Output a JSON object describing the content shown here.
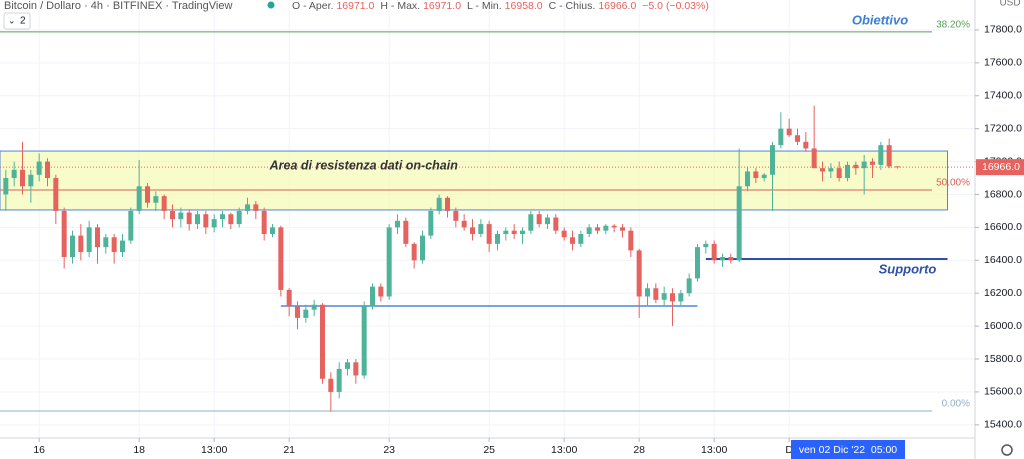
{
  "chart_data": {
    "type": "candlestick",
    "header": {
      "title": "Bitcoin / Dollaro · 4h · BITFINEX · TradingView",
      "ohlc": [
        {
          "label": "O - Aper.",
          "value": "16971.0"
        },
        {
          "label": "H - Max.",
          "value": "16971.0"
        },
        {
          "label": "L - Min.",
          "value": "16958.0"
        },
        {
          "label": "C - Chius.",
          "value": "16966.0"
        }
      ],
      "change": "−5.0 (−0.03%)",
      "indicators": "2"
    },
    "up_color": "#4fb39a",
    "down_color": "#e5625e",
    "ylim": [
      15320,
      17982
    ],
    "yticks": [
      {
        "value": 15400,
        "label": "15400.0"
      },
      {
        "value": 15600,
        "label": "15600.0"
      },
      {
        "value": 15800,
        "label": "15800.0"
      },
      {
        "value": 16000,
        "label": "16000.0"
      },
      {
        "value": 16200,
        "label": "16200.0"
      },
      {
        "value": 16400,
        "label": "16400.0"
      },
      {
        "value": 16600,
        "label": "16600.0"
      },
      {
        "value": 16800,
        "label": "16800.0"
      },
      {
        "value": 17000,
        "label": "17000.0"
      },
      {
        "value": 17200,
        "label": "17200.0"
      },
      {
        "value": 17400,
        "label": "17400.0"
      },
      {
        "value": 17600,
        "label": "17600.0"
      },
      {
        "value": 17800,
        "label": "17800.0"
      }
    ],
    "xlim": [
      -0.7,
      116.3
    ],
    "xticks": [
      {
        "value": 4,
        "label": "16"
      },
      {
        "value": 16,
        "label": "18"
      },
      {
        "value": 25,
        "label": "13:00"
      },
      {
        "value": 34,
        "label": "21"
      },
      {
        "value": 46,
        "label": "23"
      },
      {
        "value": 58,
        "label": "25"
      },
      {
        "value": 67,
        "label": "13:00"
      },
      {
        "value": 76,
        "label": "28"
      },
      {
        "value": 85,
        "label": "13:00"
      },
      {
        "value": 94,
        "label": "D"
      }
    ],
    "grid": true,
    "candles": [
      [
        16800,
        16950,
        16700,
        16900
      ],
      [
        16900,
        17000,
        16850,
        16950
      ],
      [
        16950,
        17120,
        16800,
        16850
      ],
      [
        16850,
        16950,
        16750,
        16920
      ],
      [
        16920,
        17050,
        16880,
        17000
      ],
      [
        17000,
        17020,
        16850,
        16900
      ],
      [
        16900,
        16920,
        16620,
        16700
      ],
      [
        16700,
        16720,
        16350,
        16420
      ],
      [
        16420,
        16580,
        16380,
        16550
      ],
      [
        16550,
        16620,
        16400,
        16450
      ],
      [
        16450,
        16640,
        16420,
        16600
      ],
      [
        16600,
        16620,
        16380,
        16480
      ],
      [
        16480,
        16560,
        16440,
        16540
      ],
      [
        16540,
        16560,
        16380,
        16450
      ],
      [
        16450,
        16560,
        16420,
        16520
      ],
      [
        16520,
        16720,
        16500,
        16700
      ],
      [
        16700,
        17010,
        16680,
        16850
      ],
      [
        16850,
        16870,
        16720,
        16750
      ],
      [
        16750,
        16820,
        16700,
        16790
      ],
      [
        16790,
        16800,
        16650,
        16700
      ],
      [
        16700,
        16740,
        16600,
        16650
      ],
      [
        16650,
        16720,
        16600,
        16690
      ],
      [
        16690,
        16710,
        16580,
        16620
      ],
      [
        16620,
        16700,
        16590,
        16680
      ],
      [
        16680,
        16700,
        16560,
        16600
      ],
      [
        16600,
        16680,
        16570,
        16650
      ],
      [
        16650,
        16700,
        16600,
        16680
      ],
      [
        16680,
        16690,
        16590,
        16620
      ],
      [
        16620,
        16720,
        16600,
        16700
      ],
      [
        16700,
        16780,
        16680,
        16740
      ],
      [
        16740,
        16760,
        16650,
        16700
      ],
      [
        16700,
        16720,
        16520,
        16560
      ],
      [
        16560,
        16620,
        16540,
        16600
      ],
      [
        16600,
        16610,
        16180,
        16220
      ],
      [
        16220,
        16230,
        16060,
        16120
      ],
      [
        16120,
        16150,
        15980,
        16050
      ],
      [
        16050,
        16130,
        16020,
        16100
      ],
      [
        16100,
        16160,
        16060,
        16130
      ],
      [
        16130,
        16140,
        15650,
        15680
      ],
      [
        15680,
        15720,
        15480,
        15600
      ],
      [
        15600,
        15780,
        15560,
        15740
      ],
      [
        15740,
        15800,
        15700,
        15780
      ],
      [
        15780,
        15800,
        15650,
        15700
      ],
      [
        15700,
        16150,
        15680,
        16120
      ],
      [
        16120,
        16260,
        16100,
        16240
      ],
      [
        16240,
        16260,
        16150,
        16180
      ],
      [
        16180,
        16620,
        16160,
        16600
      ],
      [
        16600,
        16680,
        16560,
        16640
      ],
      [
        16640,
        16660,
        16480,
        16500
      ],
      [
        16500,
        16510,
        16350,
        16400
      ],
      [
        16400,
        16580,
        16380,
        16550
      ],
      [
        16550,
        16720,
        16530,
        16700
      ],
      [
        16700,
        16800,
        16680,
        16780
      ],
      [
        16780,
        16790,
        16660,
        16700
      ],
      [
        16700,
        16720,
        16600,
        16640
      ],
      [
        16640,
        16680,
        16580,
        16600
      ],
      [
        16600,
        16650,
        16520,
        16560
      ],
      [
        16560,
        16650,
        16540,
        16620
      ],
      [
        16620,
        16640,
        16450,
        16500
      ],
      [
        16500,
        16580,
        16460,
        16560
      ],
      [
        16560,
        16600,
        16520,
        16580
      ],
      [
        16580,
        16620,
        16530,
        16560
      ],
      [
        16560,
        16600,
        16500,
        16580
      ],
      [
        16580,
        16700,
        16560,
        16680
      ],
      [
        16680,
        16700,
        16600,
        16620
      ],
      [
        16620,
        16680,
        16590,
        16660
      ],
      [
        16660,
        16680,
        16560,
        16580
      ],
      [
        16580,
        16600,
        16520,
        16540
      ],
      [
        16540,
        16580,
        16460,
        16500
      ],
      [
        16500,
        16580,
        16480,
        16560
      ],
      [
        16560,
        16620,
        16540,
        16600
      ],
      [
        16600,
        16620,
        16560,
        16580
      ],
      [
        16580,
        16620,
        16560,
        16610
      ],
      [
        16610,
        16620,
        16570,
        16600
      ],
      [
        16600,
        16620,
        16540,
        16580
      ],
      [
        16580,
        16600,
        16420,
        16460
      ],
      [
        16460,
        16470,
        16050,
        16180
      ],
      [
        16180,
        16260,
        16120,
        16230
      ],
      [
        16230,
        16260,
        16140,
        16160
      ],
      [
        16160,
        16240,
        16120,
        16200
      ],
      [
        16200,
        16230,
        16000,
        16150
      ],
      [
        16150,
        16220,
        16120,
        16200
      ],
      [
        16200,
        16320,
        16180,
        16290
      ],
      [
        16290,
        16500,
        16270,
        16480
      ],
      [
        16480,
        16520,
        16440,
        16500
      ],
      [
        16500,
        16520,
        16380,
        16400
      ],
      [
        16400,
        16440,
        16360,
        16420
      ],
      [
        16420,
        16440,
        16380,
        16400
      ],
      [
        16400,
        17080,
        16390,
        16850
      ],
      [
        16850,
        16970,
        16820,
        16940
      ],
      [
        16940,
        16960,
        16870,
        16900
      ],
      [
        16900,
        16930,
        16880,
        16920
      ],
      [
        16920,
        17120,
        16700,
        17100
      ],
      [
        17100,
        17300,
        17080,
        17200
      ],
      [
        17200,
        17260,
        17150,
        17160
      ],
      [
        17160,
        17200,
        17100,
        17120
      ],
      [
        17120,
        17180,
        17060,
        17080
      ],
      [
        17080,
        17340,
        16960,
        16960
      ],
      [
        16960,
        17000,
        16880,
        16940
      ],
      [
        16940,
        16990,
        16900,
        16960
      ],
      [
        16960,
        17000,
        16880,
        16900
      ],
      [
        16900,
        17000,
        16880,
        16980
      ],
      [
        16980,
        17000,
        16920,
        16960
      ],
      [
        16960,
        17040,
        16800,
        17000
      ],
      [
        17000,
        17020,
        16900,
        16980
      ],
      [
        16980,
        17120,
        16950,
        17100
      ],
      [
        17100,
        17140,
        16960,
        16971
      ],
      [
        16971,
        16971,
        16958,
        16966
      ]
    ],
    "last_price": {
      "value": 16966,
      "label": "16966.0"
    },
    "fib_levels": [
      {
        "label": "38.20%",
        "value": 17788,
        "color": "#5a9e5a"
      },
      {
        "label": "50.00%",
        "value": 16827,
        "color": "#d9605a"
      },
      {
        "label": "0.00%",
        "value": 15484,
        "color": "#8fb0c8"
      }
    ],
    "zone": {
      "label": "Area di resistenza dati on-chain",
      "top": 17064,
      "bottom": 16706,
      "from": -0.7,
      "to": 113
    },
    "lines": [
      {
        "label": "Supporto",
        "value": 16408,
        "from": 84,
        "to": 113
      },
      {
        "value": 16122,
        "from": 33,
        "to": 83
      }
    ],
    "target_label": "Obiettivo",
    "crosshair_label": "ven 02 Dic '22  05:00",
    "axis_unit": "USD"
  }
}
